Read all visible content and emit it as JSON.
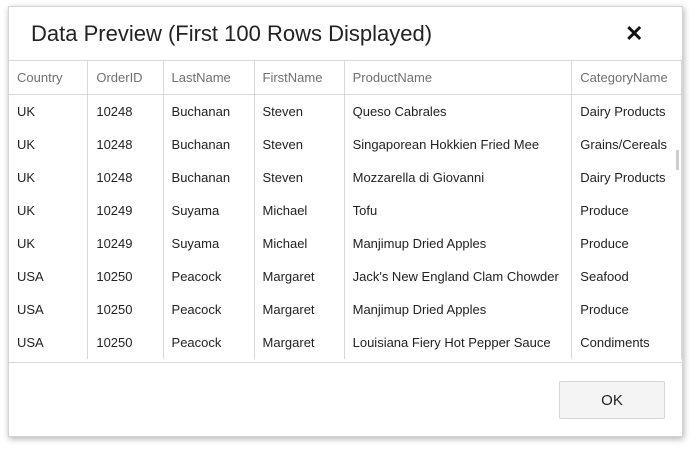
{
  "dialog": {
    "title": "Data Preview (First 100 Rows Displayed)",
    "close_icon": "close-icon",
    "ok_label": "OK"
  },
  "grid": {
    "columns": [
      "Country",
      "OrderID",
      "LastName",
      "FirstName",
      "ProductName",
      "CategoryName"
    ],
    "rows": [
      [
        "UK",
        "10248",
        "Buchanan",
        "Steven",
        "Queso Cabrales",
        "Dairy Products"
      ],
      [
        "UK",
        "10248",
        "Buchanan",
        "Steven",
        "Singaporean Hokkien Fried Mee",
        "Grains/Cereals"
      ],
      [
        "UK",
        "10248",
        "Buchanan",
        "Steven",
        "Mozzarella di Giovanni",
        "Dairy Products"
      ],
      [
        "UK",
        "10249",
        "Suyama",
        "Michael",
        "Tofu",
        "Produce"
      ],
      [
        "UK",
        "10249",
        "Suyama",
        "Michael",
        "Manjimup Dried Apples",
        "Produce"
      ],
      [
        "USA",
        "10250",
        "Peacock",
        "Margaret",
        "Jack's New England Clam Chowder",
        "Seafood"
      ],
      [
        "USA",
        "10250",
        "Peacock",
        "Margaret",
        "Manjimup Dried Apples",
        "Produce"
      ],
      [
        "USA",
        "10250",
        "Peacock",
        "Margaret",
        "Louisiana Fiery Hot Pepper Sauce",
        "Condiments"
      ]
    ]
  }
}
